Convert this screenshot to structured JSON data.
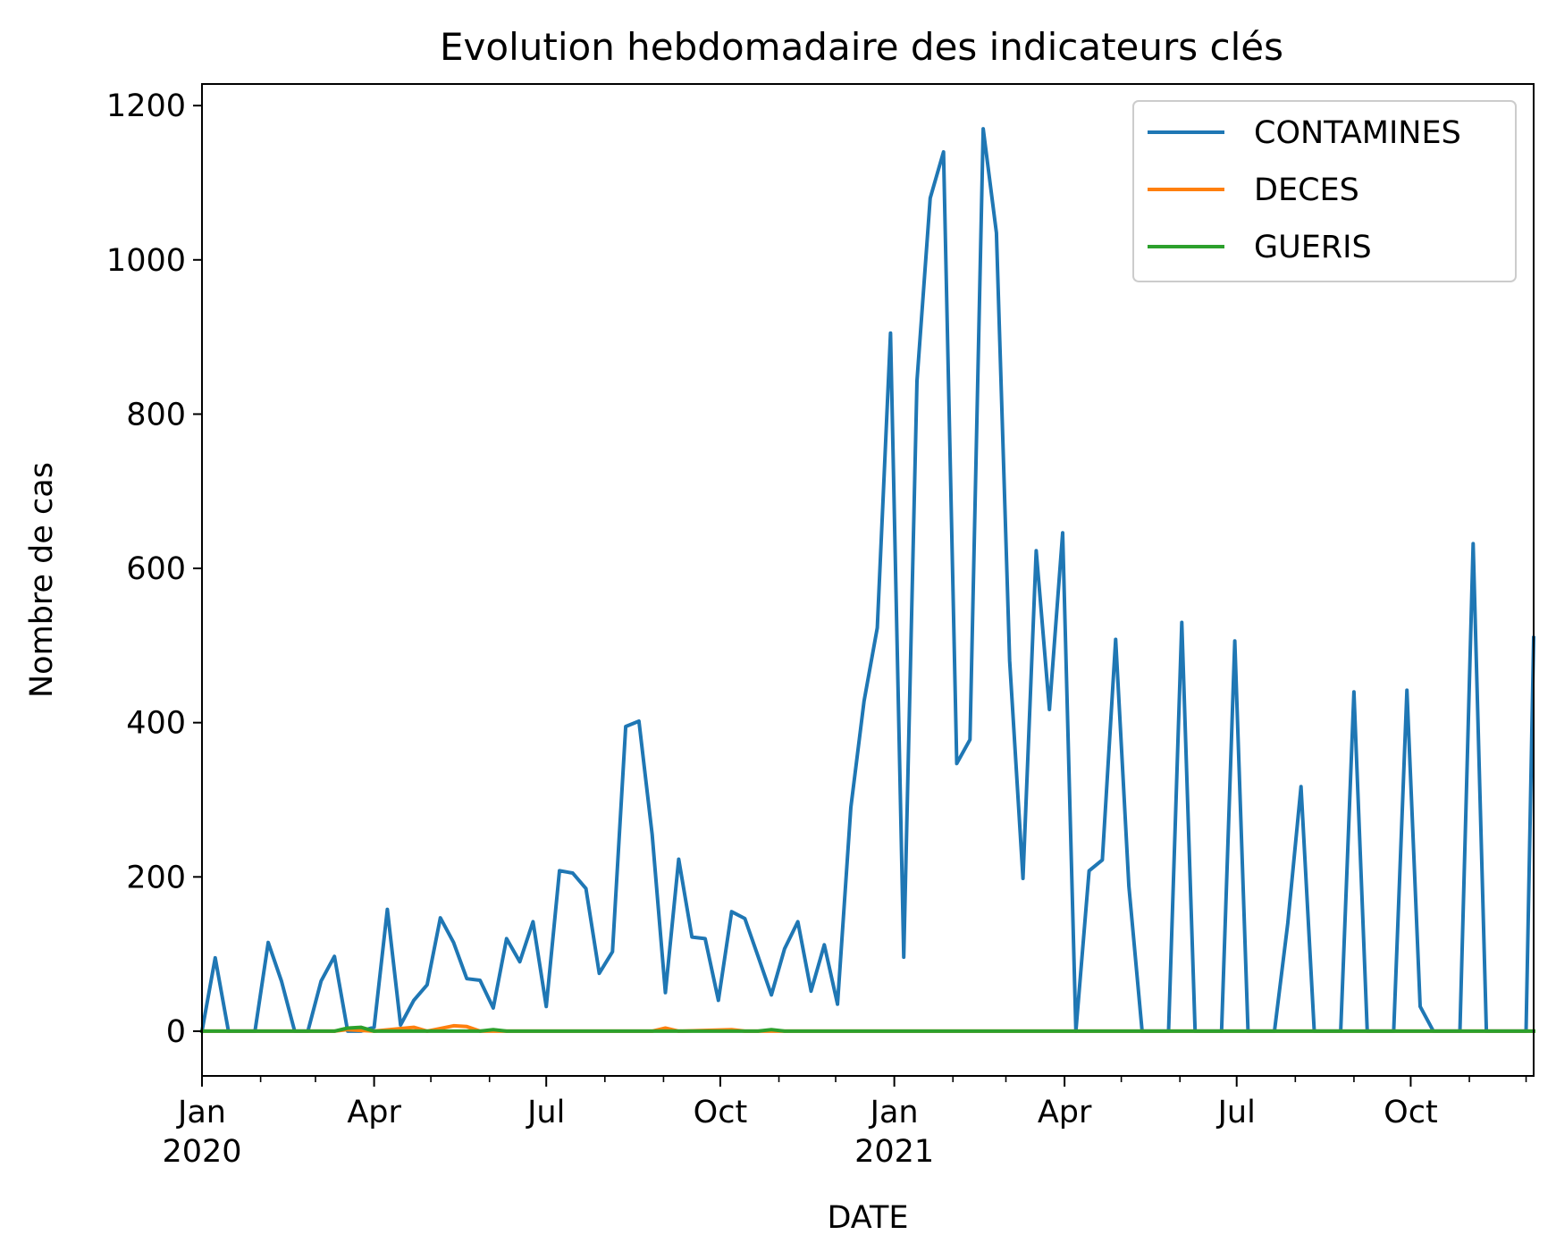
{
  "chart_data": {
    "type": "line",
    "title": "Evolution hebdomadaire des indicateurs clés",
    "xlabel": "DATE",
    "ylabel": "Nombre de cas",
    "ylim": [
      -58,
      1228
    ],
    "xlim": [
      "2020-01-01",
      "2021-12-05"
    ],
    "yticks": [
      0,
      200,
      400,
      600,
      800,
      1000,
      1200
    ],
    "xticks_major": [
      {
        "date": "2020-01-01",
        "label": "Jan",
        "sublabel": "2020"
      },
      {
        "date": "2020-04-01",
        "label": "Apr",
        "sublabel": ""
      },
      {
        "date": "2020-07-01",
        "label": "Jul",
        "sublabel": ""
      },
      {
        "date": "2020-10-01",
        "label": "Oct",
        "sublabel": ""
      },
      {
        "date": "2021-01-01",
        "label": "Jan",
        "sublabel": "2021"
      },
      {
        "date": "2021-04-01",
        "label": "Apr",
        "sublabel": ""
      },
      {
        "date": "2021-07-01",
        "label": "Jul",
        "sublabel": ""
      },
      {
        "date": "2021-10-01",
        "label": "Oct",
        "sublabel": ""
      }
    ],
    "xticks_minor": [
      "2020-02-01",
      "2020-03-01",
      "2020-05-01",
      "2020-06-01",
      "2020-08-01",
      "2020-09-01",
      "2020-11-01",
      "2020-12-01",
      "2021-02-01",
      "2021-03-01",
      "2021-05-01",
      "2021-06-01",
      "2021-08-01",
      "2021-09-01",
      "2021-11-01",
      "2021-12-01"
    ],
    "grid": false,
    "legend_position": "top-right",
    "series": [
      {
        "name": "CONTAMINES",
        "color": "#1f77b4",
        "points": [
          [
            "2020-01-01",
            0
          ],
          [
            "2020-01-08",
            95
          ],
          [
            "2020-01-15",
            0
          ],
          [
            "2020-01-22",
            0
          ],
          [
            "2020-01-29",
            0
          ],
          [
            "2020-02-05",
            115
          ],
          [
            "2020-02-12",
            65
          ],
          [
            "2020-02-19",
            0
          ],
          [
            "2020-02-26",
            0
          ],
          [
            "2020-03-04",
            65
          ],
          [
            "2020-03-11",
            97
          ],
          [
            "2020-03-18",
            0
          ],
          [
            "2020-03-25",
            0
          ],
          [
            "2020-04-01",
            5
          ],
          [
            "2020-04-08",
            158
          ],
          [
            "2020-04-15",
            8
          ],
          [
            "2020-04-22",
            40
          ],
          [
            "2020-04-29",
            60
          ],
          [
            "2020-05-06",
            147
          ],
          [
            "2020-05-13",
            115
          ],
          [
            "2020-05-20",
            68
          ],
          [
            "2020-05-27",
            66
          ],
          [
            "2020-06-03",
            30
          ],
          [
            "2020-06-10",
            120
          ],
          [
            "2020-06-17",
            90
          ],
          [
            "2020-06-24",
            142
          ],
          [
            "2020-07-01",
            32
          ],
          [
            "2020-07-08",
            208
          ],
          [
            "2020-07-15",
            205
          ],
          [
            "2020-07-22",
            185
          ],
          [
            "2020-07-29",
            75
          ],
          [
            "2020-08-05",
            103
          ],
          [
            "2020-08-12",
            395
          ],
          [
            "2020-08-19",
            402
          ],
          [
            "2020-08-26",
            255
          ],
          [
            "2020-09-02",
            50
          ],
          [
            "2020-09-09",
            223
          ],
          [
            "2020-09-16",
            122
          ],
          [
            "2020-09-23",
            120
          ],
          [
            "2020-09-30",
            40
          ],
          [
            "2020-10-07",
            155
          ],
          [
            "2020-10-14",
            146
          ],
          [
            "2020-10-21",
            97
          ],
          [
            "2020-10-28",
            47
          ],
          [
            "2020-11-04",
            107
          ],
          [
            "2020-11-11",
            142
          ],
          [
            "2020-11-18",
            52
          ],
          [
            "2020-11-25",
            112
          ],
          [
            "2020-12-02",
            35
          ],
          [
            "2020-12-09",
            290
          ],
          [
            "2020-12-16",
            428
          ],
          [
            "2020-12-23",
            523
          ],
          [
            "2020-12-30",
            905
          ],
          [
            "2021-01-06",
            96
          ],
          [
            "2021-01-13",
            843
          ],
          [
            "2021-01-20",
            1080
          ],
          [
            "2021-01-27",
            1140
          ],
          [
            "2021-02-03",
            347
          ],
          [
            "2021-02-10",
            378
          ],
          [
            "2021-02-17",
            1170
          ],
          [
            "2021-02-24",
            1035
          ],
          [
            "2021-03-03",
            480
          ],
          [
            "2021-03-10",
            198
          ],
          [
            "2021-03-17",
            623
          ],
          [
            "2021-03-24",
            417
          ],
          [
            "2021-03-31",
            646
          ],
          [
            "2021-04-07",
            0
          ],
          [
            "2021-04-14",
            208
          ],
          [
            "2021-04-21",
            222
          ],
          [
            "2021-04-28",
            508
          ],
          [
            "2021-05-05",
            188
          ],
          [
            "2021-05-12",
            0
          ],
          [
            "2021-05-19",
            0
          ],
          [
            "2021-05-26",
            0
          ],
          [
            "2021-06-02",
            530
          ],
          [
            "2021-06-09",
            0
          ],
          [
            "2021-06-16",
            0
          ],
          [
            "2021-06-23",
            0
          ],
          [
            "2021-06-30",
            506
          ],
          [
            "2021-07-07",
            0
          ],
          [
            "2021-07-14",
            0
          ],
          [
            "2021-07-21",
            0
          ],
          [
            "2021-07-28",
            140
          ],
          [
            "2021-08-04",
            317
          ],
          [
            "2021-08-11",
            0
          ],
          [
            "2021-08-18",
            0
          ],
          [
            "2021-08-25",
            0
          ],
          [
            "2021-09-01",
            440
          ],
          [
            "2021-09-08",
            0
          ],
          [
            "2021-09-15",
            0
          ],
          [
            "2021-09-22",
            0
          ],
          [
            "2021-09-29",
            442
          ],
          [
            "2021-10-06",
            32
          ],
          [
            "2021-10-13",
            0
          ],
          [
            "2021-10-20",
            0
          ],
          [
            "2021-10-27",
            0
          ],
          [
            "2021-11-03",
            632
          ],
          [
            "2021-11-10",
            0
          ],
          [
            "2021-11-17",
            0
          ],
          [
            "2021-11-24",
            0
          ],
          [
            "2021-12-01",
            0
          ],
          [
            "2021-12-05",
            510
          ]
        ]
      },
      {
        "name": "DECES",
        "color": "#ff7f0e",
        "points": [
          [
            "2020-01-01",
            0
          ],
          [
            "2020-03-11",
            0
          ],
          [
            "2020-03-18",
            2
          ],
          [
            "2020-03-25",
            1
          ],
          [
            "2020-04-01",
            0
          ],
          [
            "2020-04-22",
            5
          ],
          [
            "2020-04-29",
            0
          ],
          [
            "2020-05-13",
            7
          ],
          [
            "2020-05-20",
            6
          ],
          [
            "2020-05-27",
            0
          ],
          [
            "2020-08-26",
            0
          ],
          [
            "2020-09-02",
            4
          ],
          [
            "2020-09-09",
            0
          ],
          [
            "2020-10-07",
            2
          ],
          [
            "2020-10-14",
            0
          ],
          [
            "2021-12-05",
            0
          ]
        ]
      },
      {
        "name": "GUERIS",
        "color": "#2ca02c",
        "points": [
          [
            "2020-01-01",
            0
          ],
          [
            "2020-03-11",
            0
          ],
          [
            "2020-03-18",
            4
          ],
          [
            "2020-03-25",
            5
          ],
          [
            "2020-04-01",
            0
          ],
          [
            "2020-05-27",
            0
          ],
          [
            "2020-06-03",
            2
          ],
          [
            "2020-06-10",
            0
          ],
          [
            "2020-10-21",
            0
          ],
          [
            "2020-10-28",
            2
          ],
          [
            "2020-11-04",
            0
          ],
          [
            "2021-12-05",
            0
          ]
        ]
      }
    ]
  }
}
